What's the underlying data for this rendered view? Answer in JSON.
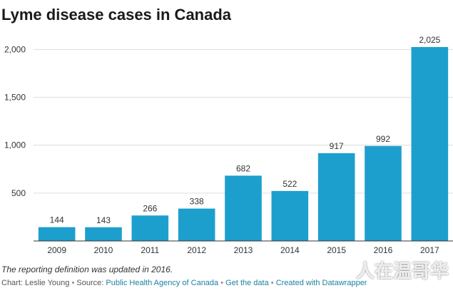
{
  "chart_data": {
    "type": "bar",
    "title": "Lyme disease cases in Canada",
    "categories": [
      "2009",
      "2010",
      "2011",
      "2012",
      "2013",
      "2014",
      "2015",
      "2016",
      "2017"
    ],
    "values": [
      144,
      143,
      266,
      338,
      682,
      522,
      917,
      992,
      2025
    ],
    "value_labels": [
      "144",
      "143",
      "266",
      "338",
      "682",
      "522",
      "917",
      "992",
      "2,025"
    ],
    "yticks": [
      500,
      1000,
      1500,
      2000
    ],
    "ytick_labels": [
      "500",
      "1,000",
      "1,500",
      "2,000"
    ],
    "ylim": [
      0,
      2025
    ],
    "grid": true,
    "xlabel": "",
    "ylabel": "",
    "bar_color": "#1d9fce"
  },
  "note": "The reporting definition was updated in 2016.",
  "credits": {
    "chart_by": "Chart: Leslie Young",
    "source_prefix": "Source:",
    "source_link": "Public Health Agency of Canada",
    "get_data": "Get the data",
    "created_with": "Created with Datawrapper",
    "separator": "•"
  },
  "watermark": "人在温哥华"
}
